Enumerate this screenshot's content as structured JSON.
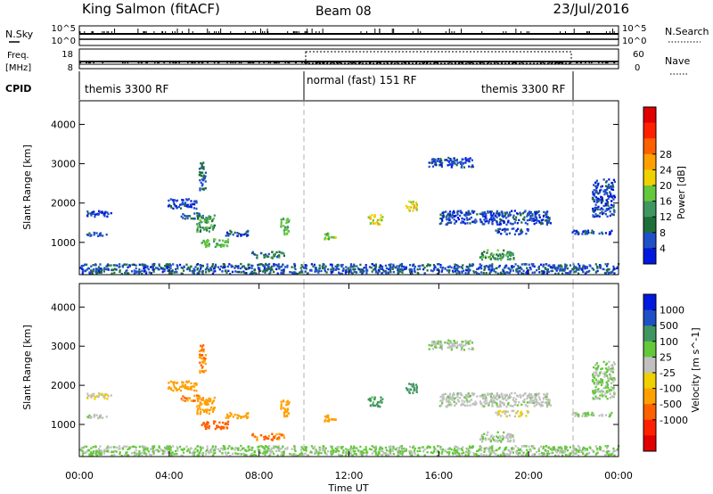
{
  "header": {
    "station": "King Salmon (fitACF)",
    "beam": "Beam 08",
    "date": "23/Jul/2016"
  },
  "nsky_panel": {
    "label": "N.Sky",
    "left_ticks": [
      "10^5",
      "10^0"
    ],
    "right_label": "N.Search",
    "right_ticks": [
      "10^5",
      "10^0"
    ]
  },
  "freq_panel": {
    "label_line1": "Freq.",
    "label_line2": "[MHz]",
    "left_ticks": [
      "18",
      "8"
    ],
    "right_label": "Nave",
    "right_ticks": [
      "60",
      "0"
    ]
  },
  "cpid": {
    "label": "CPID",
    "segments": [
      {
        "name": "themis 3300 RF",
        "start_hour": 0.0,
        "end_hour": 10.0
      },
      {
        "name": "normal (fast) 151 RF",
        "start_hour": 10.0,
        "end_hour": 22.0
      },
      {
        "name": "themis 3300 RF",
        "start_hour": 22.0,
        "end_hour": 24.0
      }
    ]
  },
  "x_axis": {
    "label": "Time UT",
    "ticks": [
      "00:00",
      "04:00",
      "08:00",
      "12:00",
      "16:00",
      "20:00",
      "00:00"
    ],
    "range_hours": [
      0,
      24
    ]
  },
  "power_panel": {
    "ylabel": "Slant Range [km]",
    "yticks": [
      "1000",
      "2000",
      "3000",
      "4000"
    ],
    "colorbar_label": "Power [dB]",
    "colorbar_ticks": [
      "4",
      "8",
      "12",
      "16",
      "20",
      "24",
      "28"
    ],
    "colors": [
      "#0018e0",
      "#2050c8",
      "#1e6e3a",
      "#3f9660",
      "#64c83c",
      "#f0d000",
      "#ffa000",
      "#ff6000",
      "#ff2000",
      "#e00000"
    ]
  },
  "velocity_panel": {
    "ylabel": "Slant Range [km]",
    "yticks": [
      "1000",
      "2000",
      "3000",
      "4000"
    ],
    "colorbar_label": "Velocity [m s^-1]",
    "colorbar_ticks": [
      "1000",
      "500",
      "100",
      "25",
      "-25",
      "-100",
      "-500",
      "-1000"
    ],
    "colors": [
      "#0018e0",
      "#2050c8",
      "#3f9660",
      "#64c83c",
      "#c0c0c0",
      "#f0d000",
      "#ffa000",
      "#ff6000",
      "#ff2000",
      "#e00000"
    ]
  },
  "chart_data": {
    "type": "heatmap",
    "x_unit": "hours UT",
    "y_unit": "km",
    "xlim": [
      0,
      24
    ],
    "ylim": [
      180,
      4600
    ],
    "grid": false,
    "dashed_markers_hours": [
      10.0,
      22.0
    ],
    "regions": [
      {
        "x": [
          0.2,
          1.2
        ],
        "y": [
          1150,
          1250
        ],
        "power": 4,
        "velocity": 25
      },
      {
        "x": [
          0.2,
          1.5
        ],
        "y": [
          1650,
          1800
        ],
        "power": 4,
        "velocity": -25
      },
      {
        "x": [
          3.9,
          5.2
        ],
        "y": [
          1850,
          2100
        ],
        "power": 4,
        "velocity": -100
      },
      {
        "x": [
          4.5,
          5.5
        ],
        "y": [
          1600,
          1750
        ],
        "power": 6,
        "velocity": -300
      },
      {
        "x": [
          5.3,
          6.6
        ],
        "y": [
          880,
          1080
        ],
        "power": 12,
        "velocity": -500
      },
      {
        "x": [
          5.2,
          6.0
        ],
        "y": [
          1250,
          1700
        ],
        "power": 10,
        "velocity": -100
      },
      {
        "x": [
          5.3,
          5.6
        ],
        "y": [
          2300,
          3050
        ],
        "power": 6,
        "velocity": -300
      },
      {
        "x": [
          6.4,
          7.5
        ],
        "y": [
          1150,
          1300
        ],
        "power": 5,
        "velocity": -100
      },
      {
        "x": [
          7.6,
          9.1
        ],
        "y": [
          600,
          760
        ],
        "power": 8,
        "velocity": -300
      },
      {
        "x": [
          8.9,
          9.3
        ],
        "y": [
          1200,
          1650
        ],
        "power": 12,
        "velocity": -200
      },
      {
        "x": [
          10.8,
          11.4
        ],
        "y": [
          1060,
          1250
        ],
        "power": 14,
        "velocity": -200
      },
      {
        "x": [
          12.8,
          13.5
        ],
        "y": [
          1450,
          1700
        ],
        "power": 16,
        "velocity": 80
      },
      {
        "x": [
          14.5,
          15.0
        ],
        "y": [
          1800,
          2050
        ],
        "power": 16,
        "velocity": 150
      },
      {
        "x": [
          15.5,
          17.5
        ],
        "y": [
          2900,
          3150
        ],
        "power": 4,
        "velocity": 20
      },
      {
        "x": [
          16.0,
          21.0
        ],
        "y": [
          1450,
          1800
        ],
        "power": 4,
        "velocity": 10
      },
      {
        "x": [
          18.5,
          20.0
        ],
        "y": [
          1200,
          1350
        ],
        "power": 4,
        "velocity": -20
      },
      {
        "x": [
          17.8,
          19.3
        ],
        "y": [
          550,
          800
        ],
        "power": 10,
        "velocity": 15
      },
      {
        "x": [
          21.8,
          23.7
        ],
        "y": [
          1200,
          1300
        ],
        "power": 4,
        "velocity": 20
      },
      {
        "x": [
          22.8,
          23.8
        ],
        "y": [
          1650,
          2600
        ],
        "power": 4,
        "velocity": 30
      },
      {
        "x": [
          0.0,
          24.0
        ],
        "y": [
          200,
          450
        ],
        "power": 5,
        "velocity": 30
      }
    ]
  }
}
